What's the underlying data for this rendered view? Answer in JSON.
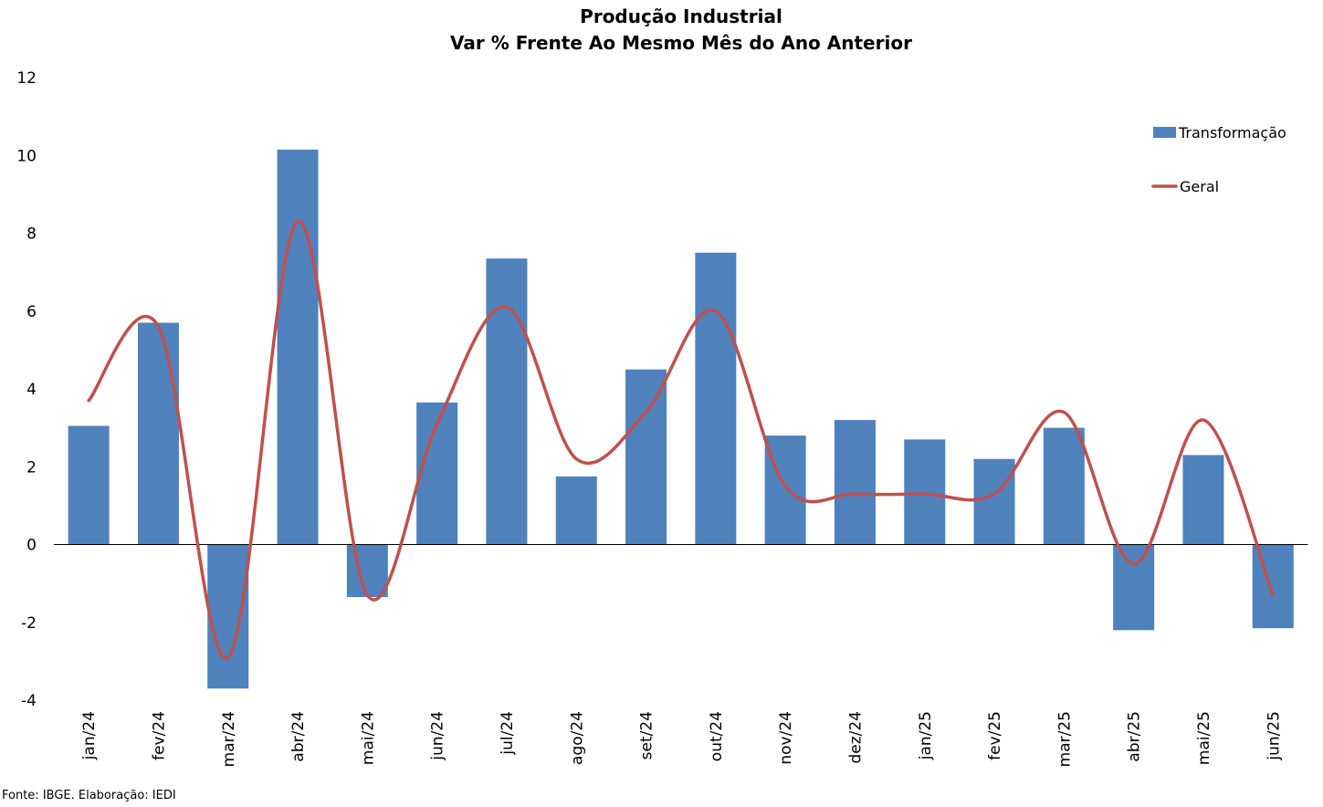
{
  "chart_data": {
    "type": "bar",
    "title": "Produção Industrial",
    "subtitle": "Var % Frente Ao Mesmo Mês do Ano Anterior",
    "categories": [
      "jan/24",
      "fev/24",
      "mar/24",
      "abr/24",
      "mai/24",
      "jun/24",
      "jul/24",
      "ago/24",
      "set/24",
      "out/24",
      "nov/24",
      "dez/24",
      "jan/25",
      "fev/25",
      "mar/25",
      "abr/25",
      "mai/25",
      "jun/25"
    ],
    "series": [
      {
        "name": "Transformação",
        "type": "bar",
        "color": "#4f81bd",
        "values": [
          3.05,
          5.7,
          -3.7,
          10.15,
          -1.35,
          3.65,
          7.35,
          1.75,
          4.5,
          7.5,
          2.8,
          3.2,
          2.7,
          2.2,
          3.0,
          -2.2,
          2.3,
          -2.15
        ]
      },
      {
        "name": "Geral",
        "type": "line",
        "smooth": true,
        "color": "#c0504d",
        "values": [
          3.7,
          5.6,
          -2.9,
          8.3,
          -1.3,
          3.1,
          6.1,
          2.2,
          3.4,
          6.0,
          1.5,
          1.3,
          1.3,
          1.3,
          3.4,
          -0.5,
          3.2,
          -1.3
        ]
      }
    ],
    "xlabel": "",
    "ylabel": "",
    "ylim": [
      -4,
      12
    ],
    "yticks": [
      "12",
      "10",
      "8",
      "6",
      "4",
      "2",
      "0",
      "-2",
      "-4"
    ],
    "grid": false,
    "legend_position": "top-right"
  },
  "source_note": "Fonte: IBGE. Elaboração: IEDI"
}
